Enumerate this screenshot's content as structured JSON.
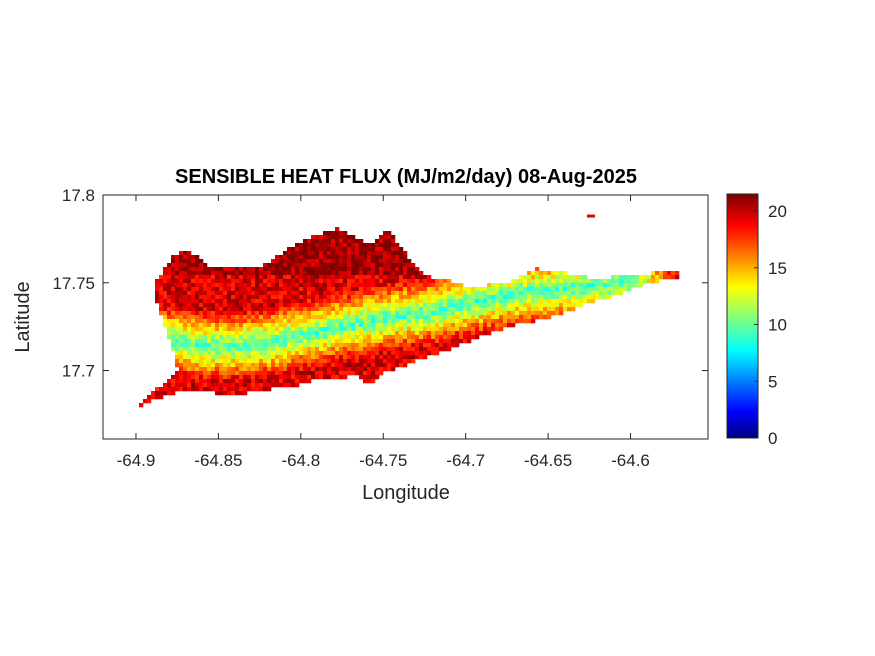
{
  "chart_data": {
    "type": "heatmap",
    "title": "SENSIBLE HEAT FLUX (MJ/m2/day) 08-Aug-2025",
    "xlabel": "Longitude",
    "ylabel": "Latitude",
    "xlim": [
      -64.92,
      -64.553
    ],
    "ylim": [
      17.661,
      17.8
    ],
    "xticks": [
      -64.9,
      -64.85,
      -64.8,
      -64.75,
      -64.7,
      -64.65,
      -64.6
    ],
    "xtick_labels": [
      "-64.9",
      "-64.85",
      "-64.8",
      "-64.75",
      "-64.7",
      "-64.65",
      "-64.6"
    ],
    "yticks": [
      17.7,
      17.75,
      17.8
    ],
    "ytick_labels": [
      "17.7",
      "17.75",
      "17.8"
    ],
    "colorbar": {
      "colormap": "jet",
      "range": [
        0,
        21.5
      ],
      "ticks": [
        0,
        5,
        10,
        15,
        20
      ],
      "tick_labels": [
        "0",
        "5",
        "10",
        "15",
        "20"
      ]
    },
    "region": {
      "outline": [
        [
          -64.9,
          17.679
        ],
        [
          -64.893,
          17.686
        ],
        [
          -64.885,
          17.691
        ],
        [
          -64.878,
          17.697
        ],
        [
          -64.874,
          17.7
        ],
        [
          -64.876,
          17.705
        ],
        [
          -64.878,
          17.712
        ],
        [
          -64.881,
          17.722
        ],
        [
          -64.885,
          17.732
        ],
        [
          -64.889,
          17.742
        ],
        [
          -64.888,
          17.75
        ],
        [
          -64.884,
          17.756
        ],
        [
          -64.878,
          17.765
        ],
        [
          -64.87,
          17.768
        ],
        [
          -64.863,
          17.766
        ],
        [
          -64.856,
          17.76
        ],
        [
          -64.845,
          17.76
        ],
        [
          -64.83,
          17.758
        ],
        [
          -64.818,
          17.762
        ],
        [
          -64.808,
          17.77
        ],
        [
          -64.797,
          17.775
        ],
        [
          -64.787,
          17.778
        ],
        [
          -64.779,
          17.781
        ],
        [
          -64.77,
          17.778
        ],
        [
          -64.762,
          17.773
        ],
        [
          -64.756,
          17.772
        ],
        [
          -64.748,
          17.78
        ],
        [
          -64.74,
          17.772
        ],
        [
          -64.731,
          17.76
        ],
        [
          -64.72,
          17.752
        ],
        [
          -64.71,
          17.751
        ],
        [
          -64.7,
          17.748
        ],
        [
          -64.69,
          17.748
        ],
        [
          -64.682,
          17.751
        ],
        [
          -64.673,
          17.751
        ],
        [
          -64.666,
          17.754
        ],
        [
          -64.657,
          17.758
        ],
        [
          -64.646,
          17.757
        ],
        [
          -64.635,
          17.755
        ],
        [
          -64.622,
          17.752
        ],
        [
          -64.605,
          17.754
        ],
        [
          -64.592,
          17.755
        ],
        [
          -64.58,
          17.757
        ],
        [
          -64.566,
          17.755
        ],
        [
          -64.575,
          17.752
        ],
        [
          -64.59,
          17.75
        ],
        [
          -64.605,
          17.744
        ],
        [
          -64.62,
          17.74
        ],
        [
          -64.635,
          17.735
        ],
        [
          -64.65,
          17.73
        ],
        [
          -64.665,
          17.727
        ],
        [
          -64.68,
          17.723
        ],
        [
          -64.695,
          17.718
        ],
        [
          -64.71,
          17.712
        ],
        [
          -64.725,
          17.707
        ],
        [
          -64.74,
          17.702
        ],
        [
          -64.752,
          17.698
        ],
        [
          -64.758,
          17.692
        ],
        [
          -64.766,
          17.697
        ],
        [
          -64.776,
          17.696
        ],
        [
          -64.79,
          17.695
        ],
        [
          -64.8,
          17.692
        ],
        [
          -64.815,
          17.69
        ],
        [
          -64.83,
          17.688
        ],
        [
          -64.84,
          17.685
        ],
        [
          -64.847,
          17.686
        ],
        [
          -64.855,
          17.688
        ],
        [
          -64.87,
          17.689
        ],
        [
          -64.882,
          17.686
        ],
        [
          -64.892,
          17.682
        ]
      ],
      "cool_band": {
        "centerline": [
          [
            -64.876,
            17.717
          ],
          [
            -64.86,
            17.714
          ],
          [
            -64.84,
            17.714
          ],
          [
            -64.82,
            17.716
          ],
          [
            -64.8,
            17.72
          ],
          [
            -64.78,
            17.724
          ],
          [
            -64.76,
            17.728
          ],
          [
            -64.74,
            17.731
          ],
          [
            -64.72,
            17.734
          ],
          [
            -64.7,
            17.738
          ],
          [
            -64.68,
            17.742
          ],
          [
            -64.66,
            17.745
          ],
          [
            -64.64,
            17.747
          ],
          [
            -64.62,
            17.748
          ],
          [
            -64.603,
            17.751
          ]
        ],
        "min_value": 9.5
      },
      "typical_value": 19.5
    },
    "extra_spots": [
      {
        "lon": -64.624,
        "lat": 17.788,
        "value": 19.5
      }
    ]
  }
}
